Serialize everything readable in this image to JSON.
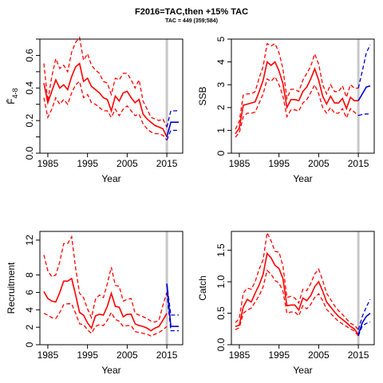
{
  "title": "F2016=TAC,then  +15% TAC",
  "subtitle": "TAC = 449 (359;584)",
  "colors": {
    "history": "#ff0000",
    "projection": "#0000cc",
    "separator": "#c8c8c8"
  },
  "separator_year": 2015,
  "chart_data": [
    {
      "type": "line",
      "panel": "top-left",
      "ylabel": "F̄",
      "ylabel_subscript": "4-8",
      "xlabel": "Year",
      "xlim": [
        1983,
        2019
      ],
      "ylim": [
        0,
        0.7
      ],
      "xticks": [
        1985,
        1995,
        2005,
        2015
      ],
      "xtick_labels": [
        "1985",
        "1995",
        "2005",
        "2015"
      ],
      "yticks": [
        0,
        0.1,
        0.2,
        0.3,
        0.4,
        0.5,
        0.6,
        0.7
      ],
      "ytick_labels": [
        "0.0",
        "",
        "0.2",
        "",
        "0.4",
        "",
        "0.6",
        ""
      ],
      "x": [
        1984,
        1985,
        1986,
        1987,
        1988,
        1989,
        1990,
        1991,
        1992,
        1993,
        1994,
        1995,
        1996,
        1997,
        1998,
        1999,
        2000,
        2001,
        2002,
        2003,
        2004,
        2005,
        2006,
        2007,
        2008,
        2009,
        2010,
        2011,
        2012,
        2013,
        2014,
        2015
      ],
      "series": [
        {
          "role": "median",
          "values": [
            0.43,
            0.31,
            0.38,
            0.45,
            0.4,
            0.42,
            0.39,
            0.47,
            0.53,
            0.55,
            0.44,
            0.46,
            0.41,
            0.39,
            0.37,
            0.34,
            0.33,
            0.26,
            0.35,
            0.32,
            0.37,
            0.38,
            0.34,
            0.31,
            0.33,
            0.24,
            0.21,
            0.19,
            0.17,
            0.16,
            0.15,
            0.1
          ]
        },
        {
          "role": "upper",
          "values": [
            0.55,
            0.32,
            0.47,
            0.58,
            0.52,
            0.54,
            0.5,
            0.62,
            0.68,
            0.71,
            0.57,
            0.61,
            0.54,
            0.51,
            0.49,
            0.44,
            0.43,
            0.36,
            0.46,
            0.45,
            0.49,
            0.49,
            0.45,
            0.4,
            0.45,
            0.32,
            0.27,
            0.22,
            0.21,
            0.2,
            0.21,
            0.16
          ]
        },
        {
          "role": "lower",
          "values": [
            0.34,
            0.22,
            0.27,
            0.34,
            0.3,
            0.33,
            0.3,
            0.37,
            0.42,
            0.44,
            0.34,
            0.36,
            0.31,
            0.3,
            0.28,
            0.26,
            0.26,
            0.22,
            0.27,
            0.23,
            0.27,
            0.29,
            0.26,
            0.23,
            0.24,
            0.18,
            0.15,
            0.13,
            0.12,
            0.12,
            0.11,
            0.08
          ]
        }
      ],
      "projection": {
        "x": [
          2015,
          2016,
          2017,
          2018
        ],
        "median": [
          0.1,
          0.19,
          0.19,
          0.19
        ],
        "upper": [
          0.16,
          0.26,
          0.26,
          0.26
        ],
        "lower": [
          0.08,
          0.14,
          0.14,
          0.14
        ]
      }
    },
    {
      "type": "line",
      "panel": "top-right",
      "ylabel": "SSB",
      "xlabel": "Year",
      "xlim": [
        1983,
        2019
      ],
      "ylim": [
        0,
        5
      ],
      "xticks": [
        1985,
        1995,
        2005,
        2015
      ],
      "xtick_labels": [
        "1985",
        "1995",
        "2005",
        "2015"
      ],
      "yticks": [
        0,
        1,
        2,
        3,
        4,
        5
      ],
      "ytick_labels": [
        "0",
        "1",
        "2",
        "3",
        "4",
        "5"
      ],
      "x": [
        1984,
        1985,
        1986,
        1987,
        1988,
        1989,
        1990,
        1991,
        1992,
        1993,
        1994,
        1995,
        1996,
        1997,
        1998,
        1999,
        2000,
        2001,
        2002,
        2003,
        2004,
        2005,
        2006,
        2007,
        2008,
        2009,
        2010,
        2011,
        2012,
        2013,
        2014,
        2015
      ],
      "series": [
        {
          "role": "median",
          "values": [
            0.85,
            1.1,
            2.1,
            2.15,
            2.2,
            2.25,
            2.7,
            3.2,
            4.0,
            3.85,
            4.0,
            3.6,
            3.05,
            2.0,
            2.35,
            2.35,
            2.3,
            2.7,
            2.9,
            3.25,
            3.7,
            3.2,
            2.5,
            2.15,
            2.5,
            2.2,
            2.2,
            2.4,
            1.95,
            2.45,
            2.3,
            2.3
          ]
        },
        {
          "role": "upper",
          "values": [
            1.05,
            1.4,
            2.55,
            2.6,
            2.6,
            2.7,
            3.3,
            3.8,
            4.8,
            4.7,
            4.8,
            4.4,
            3.7,
            2.4,
            2.8,
            2.8,
            2.7,
            3.2,
            3.5,
            3.8,
            4.35,
            3.9,
            3.0,
            2.6,
            3.0,
            2.7,
            2.7,
            2.95,
            2.45,
            3.0,
            2.85,
            2.85
          ]
        },
        {
          "role": "lower",
          "values": [
            0.7,
            0.9,
            1.6,
            1.75,
            1.75,
            1.8,
            2.2,
            2.6,
            3.25,
            3.15,
            3.35,
            3.0,
            2.5,
            1.6,
            1.9,
            1.9,
            1.85,
            2.2,
            2.35,
            2.65,
            3.0,
            2.6,
            2.0,
            1.75,
            2.0,
            1.75,
            1.75,
            1.95,
            1.55,
            1.95,
            1.8,
            1.65
          ]
        }
      ],
      "projection": {
        "x": [
          2015,
          2016,
          2017,
          2018
        ],
        "median": [
          2.3,
          2.6,
          2.9,
          2.95
        ],
        "upper": [
          2.85,
          3.6,
          4.4,
          4.75
        ],
        "lower": [
          1.65,
          1.7,
          1.72,
          1.72
        ]
      }
    },
    {
      "type": "line",
      "panel": "bottom-left",
      "ylabel": "Recruitment",
      "xlabel": "Year",
      "xlim": [
        1983,
        2019
      ],
      "ylim": [
        0,
        13
      ],
      "xticks": [
        1985,
        1995,
        2005,
        2015
      ],
      "xtick_labels": [
        "1985",
        "1995",
        "2005",
        "2015"
      ],
      "yticks": [
        0,
        2,
        4,
        6,
        8,
        12
      ],
      "ytick_labels": [
        "0",
        "2",
        "4",
        "6",
        "8",
        "12"
      ],
      "x": [
        1984,
        1985,
        1986,
        1987,
        1988,
        1989,
        1990,
        1991,
        1992,
        1993,
        1994,
        1995,
        1996,
        1997,
        1998,
        1999,
        2000,
        2001,
        2002,
        2003,
        2004,
        2005,
        2006,
        2007,
        2008,
        2009,
        2010,
        2011,
        2012,
        2013,
        2014,
        2015
      ],
      "series": [
        {
          "role": "median",
          "values": [
            6.1,
            5.3,
            5.0,
            4.9,
            6.0,
            7.3,
            7.3,
            7.6,
            5.7,
            3.7,
            3.4,
            2.5,
            1.9,
            3.3,
            3.5,
            3.4,
            4.4,
            5.9,
            4.4,
            4.3,
            3.2,
            3.5,
            3.5,
            2.4,
            2.2,
            2.1,
            1.9,
            1.6,
            1.9,
            2.1,
            2.8,
            3.6
          ]
        },
        {
          "role": "upper",
          "values": [
            10.3,
            8.5,
            7.8,
            8.0,
            9.5,
            11.6,
            11.6,
            12.4,
            8.8,
            5.9,
            5.4,
            4.1,
            3.1,
            5.2,
            5.7,
            5.4,
            7.0,
            8.9,
            6.8,
            6.7,
            5.0,
            5.2,
            5.3,
            3.6,
            3.4,
            3.2,
            3.0,
            2.7,
            2.6,
            2.8,
            4.5,
            6.0
          ]
        },
        {
          "role": "lower",
          "values": [
            3.6,
            3.4,
            3.1,
            3.0,
            3.7,
            4.6,
            4.7,
            4.7,
            3.6,
            2.4,
            2.3,
            1.7,
            1.3,
            2.1,
            2.3,
            2.2,
            2.8,
            3.7,
            2.9,
            2.7,
            2.1,
            2.2,
            2.2,
            1.5,
            1.4,
            1.3,
            1.2,
            1.0,
            1.2,
            1.4,
            1.7,
            2.1
          ]
        }
      ],
      "projection": {
        "x": [
          2015,
          2016,
          2017,
          2018
        ],
        "median": [
          7.0,
          2.1,
          2.1,
          2.1
        ],
        "upper": [
          7.0,
          3.4,
          3.4,
          3.4
        ],
        "lower": [
          6.0,
          1.6,
          1.6,
          1.6
        ]
      }
    },
    {
      "type": "line",
      "panel": "bottom-right",
      "ylabel": "Catch",
      "xlabel": "Year",
      "xlim": [
        1983,
        2019
      ],
      "ylim": [
        0,
        1.8
      ],
      "xticks": [
        1985,
        1995,
        2005,
        2015
      ],
      "xtick_labels": [
        "1985",
        "1995",
        "2005",
        "2015"
      ],
      "yticks": [
        0,
        0.5,
        1.0,
        1.5
      ],
      "ytick_labels": [
        "0.0",
        "0.5",
        "1.0",
        "1.5"
      ],
      "x": [
        1984,
        1985,
        1986,
        1987,
        1988,
        1989,
        1990,
        1991,
        1992,
        1993,
        1994,
        1995,
        1996,
        1997,
        1998,
        1999,
        2000,
        2001,
        2002,
        2003,
        2004,
        2005,
        2006,
        2007,
        2008,
        2009,
        2010,
        2011,
        2012,
        2013,
        2014,
        2015
      ],
      "series": [
        {
          "role": "median",
          "values": [
            0.29,
            0.31,
            0.6,
            0.72,
            0.68,
            0.82,
            0.95,
            1.12,
            1.45,
            1.38,
            1.26,
            1.21,
            1.05,
            0.62,
            0.63,
            0.63,
            0.55,
            0.74,
            0.7,
            0.78,
            0.92,
            1.0,
            0.85,
            0.68,
            0.6,
            0.52,
            0.45,
            0.4,
            0.35,
            0.29,
            0.25,
            0.16
          ]
        },
        {
          "role": "upper",
          "values": [
            0.35,
            0.42,
            0.82,
            0.9,
            0.88,
            1.0,
            1.2,
            1.35,
            1.78,
            1.65,
            1.48,
            1.47,
            1.25,
            0.75,
            0.77,
            0.74,
            0.66,
            0.88,
            0.86,
            0.97,
            1.12,
            1.2,
            1.02,
            0.82,
            0.72,
            0.62,
            0.54,
            0.48,
            0.41,
            0.34,
            0.31,
            0.24
          ]
        },
        {
          "role": "lower",
          "values": [
            0.24,
            0.27,
            0.5,
            0.55,
            0.58,
            0.68,
            0.78,
            0.92,
            1.18,
            1.12,
            1.02,
            0.98,
            0.85,
            0.5,
            0.52,
            0.52,
            0.46,
            0.62,
            0.57,
            0.64,
            0.75,
            0.81,
            0.7,
            0.56,
            0.5,
            0.43,
            0.37,
            0.33,
            0.29,
            0.25,
            0.22,
            0.14
          ]
        }
      ],
      "projection": {
        "x": [
          2015,
          2016,
          2017,
          2018
        ],
        "median": [
          0.16,
          0.35,
          0.45,
          0.5
        ],
        "upper": [
          0.24,
          0.45,
          0.6,
          0.72
        ],
        "lower": [
          0.14,
          0.3,
          0.34,
          0.36
        ]
      }
    }
  ]
}
